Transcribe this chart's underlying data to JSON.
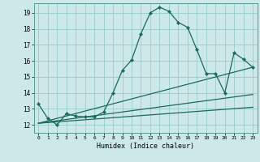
{
  "xlabel": "Humidex (Indice chaleur)",
  "bg_color": "#cce8e8",
  "grid_color": "#99cccc",
  "line_color": "#1a6a60",
  "xlim": [
    -0.5,
    23.5
  ],
  "ylim": [
    11.5,
    19.6
  ],
  "xticks": [
    0,
    1,
    2,
    3,
    4,
    5,
    6,
    7,
    8,
    9,
    10,
    11,
    12,
    13,
    14,
    15,
    16,
    17,
    18,
    19,
    20,
    21,
    22,
    23
  ],
  "yticks": [
    12,
    13,
    14,
    15,
    16,
    17,
    18,
    19
  ],
  "main_line": {
    "x": [
      0,
      1,
      2,
      3,
      4,
      5,
      6,
      7,
      8,
      9,
      10,
      11,
      12,
      13,
      14,
      15,
      16,
      17,
      18,
      19,
      20,
      21,
      22,
      23
    ],
    "y": [
      13.3,
      12.4,
      12.0,
      12.7,
      12.55,
      12.5,
      12.5,
      12.8,
      14.0,
      15.4,
      16.05,
      17.7,
      19.0,
      19.35,
      19.1,
      18.4,
      18.1,
      16.7,
      15.2,
      15.2,
      14.0,
      16.5,
      16.1,
      15.6
    ]
  },
  "trend_lines": [
    {
      "x": [
        0,
        23
      ],
      "y": [
        12.1,
        15.6
      ]
    },
    {
      "x": [
        0,
        23
      ],
      "y": [
        12.1,
        13.9
      ]
    },
    {
      "x": [
        0,
        23
      ],
      "y": [
        12.1,
        13.1
      ]
    }
  ]
}
